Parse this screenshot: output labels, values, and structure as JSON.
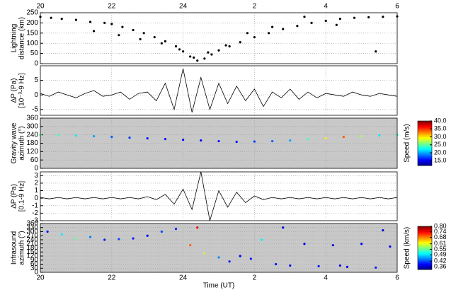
{
  "chart_data": [
    {
      "type": "scatter",
      "y_label": [
        "Lightning",
        "distance (km)"
      ],
      "color": "#000000",
      "xlim": [
        20,
        30
      ],
      "xticks": [
        20,
        22,
        24,
        {
          "value": 26,
          "label": "2"
        },
        {
          "value": 28,
          "label": "4"
        },
        {
          "value": 30,
          "label": "6"
        }
      ],
      "xaxis_labels": "top",
      "ylim": [
        0,
        250
      ],
      "yticks": [
        0,
        50,
        100,
        150,
        200,
        250
      ],
      "grid": true,
      "x": [
        20.0,
        20.3,
        20.6,
        21.0,
        21.4,
        21.8,
        22.0,
        22.3,
        22.6,
        22.9,
        23.2,
        23.5,
        23.8,
        24.0,
        24.2,
        24.4,
        24.6,
        24.8,
        25.0,
        25.3,
        25.6,
        26.0,
        26.4,
        26.8,
        27.2,
        27.6,
        28.0,
        28.4,
        28.8,
        29.2,
        29.6,
        30.0,
        21.5,
        22.2,
        22.8,
        23.4,
        23.9,
        24.3,
        24.7,
        25.2,
        25.8,
        26.5,
        27.4,
        28.3,
        29.4
      ],
      "values": [
        230,
        225,
        220,
        215,
        205,
        200,
        195,
        180,
        165,
        150,
        130,
        110,
        85,
        60,
        35,
        15,
        25,
        45,
        65,
        85,
        105,
        130,
        150,
        170,
        185,
        200,
        210,
        220,
        225,
        228,
        230,
        232,
        160,
        140,
        120,
        100,
        70,
        30,
        55,
        90,
        150,
        180,
        230,
        190,
        60
      ]
    },
    {
      "type": "line",
      "y_label": [
        "ΔP (Pa)",
        "[10⁻³-9 Hz]"
      ],
      "color": "#000000",
      "xlim": [
        20,
        30
      ],
      "xticks": [
        20,
        22,
        24,
        26,
        28,
        30
      ],
      "ylim": [
        -7,
        10
      ],
      "yticks": [
        -5,
        0,
        5
      ],
      "grid": true,
      "x": [
        20,
        20.25,
        20.5,
        20.75,
        21,
        21.25,
        21.5,
        21.75,
        22,
        22.25,
        22.5,
        22.75,
        23,
        23.25,
        23.5,
        23.75,
        24,
        24.25,
        24.5,
        24.75,
        25,
        25.25,
        25.5,
        25.75,
        26,
        26.25,
        26.5,
        26.75,
        27,
        27.25,
        27.5,
        27.75,
        28,
        28.25,
        28.5,
        28.75,
        29,
        29.25,
        29.5,
        29.75,
        30
      ],
      "values": [
        0.5,
        -0.5,
        1,
        0,
        -1,
        0.5,
        1.5,
        -0.5,
        0,
        1,
        -1.5,
        0.5,
        1,
        -2,
        4,
        -5,
        9,
        -6,
        6,
        -5,
        4,
        -3,
        3,
        -2,
        2,
        -4,
        1,
        -1,
        2,
        -1.5,
        1,
        -1,
        0.5,
        0,
        -0.5,
        1,
        0,
        -0.5,
        0.5,
        0,
        -0.5
      ]
    },
    {
      "type": "scatter",
      "y_label": [
        "Gravity wave",
        "azimuth (°)"
      ],
      "background": "#c8c8c8",
      "xlim": [
        20,
        30
      ],
      "xticks": [
        20,
        22,
        24,
        26,
        28,
        30
      ],
      "ylim": [
        0,
        360
      ],
      "yticks": [
        0,
        60,
        120,
        180,
        240,
        300,
        360
      ],
      "grid": true,
      "x": [
        20,
        20.5,
        21,
        21.5,
        22,
        22.5,
        23,
        23.5,
        24,
        24.5,
        25,
        25.5,
        26,
        26.5,
        27,
        27.5,
        28,
        28.5,
        29,
        29.5,
        30
      ],
      "values": [
        240,
        238,
        235,
        230,
        225,
        220,
        215,
        210,
        205,
        200,
        195,
        190,
        192,
        195,
        200,
        210,
        215,
        225,
        230,
        235,
        240
      ],
      "speed": [
        25,
        24,
        22,
        20,
        18,
        17,
        16,
        16,
        15,
        15,
        16,
        15,
        17,
        18,
        20,
        24,
        30,
        34,
        27,
        22,
        24
      ],
      "colorbar": {
        "label": "Speed (m/s)",
        "lim": [
          12,
          40
        ],
        "ticks": [
          {
            "value": 15,
            "label": "15.0"
          },
          {
            "value": 20,
            "label": "20.0"
          },
          {
            "value": 25,
            "label": "25.0"
          },
          {
            "value": 30,
            "label": "30.0"
          },
          {
            "value": 35,
            "label": "35.0"
          },
          {
            "value": 40,
            "label": "40.0"
          }
        ]
      }
    },
    {
      "type": "line",
      "y_label": [
        "ΔP (Pa)",
        "[0.1-9 Hz]"
      ],
      "color": "#000000",
      "xlim": [
        20,
        30
      ],
      "xticks": [
        20,
        22,
        24,
        26,
        28,
        30
      ],
      "ylim": [
        -3,
        3.5
      ],
      "yticks": [
        -3,
        -2,
        -1,
        0,
        1,
        2,
        3
      ],
      "grid": true,
      "x": [
        20,
        20.25,
        20.5,
        20.75,
        21,
        21.25,
        21.5,
        21.75,
        22,
        22.25,
        22.5,
        22.75,
        23,
        23.25,
        23.5,
        23.75,
        24,
        24.25,
        24.5,
        24.75,
        25,
        25.25,
        25.5,
        25.75,
        26,
        26.25,
        26.5,
        26.75,
        27,
        27.25,
        27.5,
        27.75,
        28,
        28.25,
        28.5,
        28.75,
        29,
        29.25,
        29.5,
        29.75,
        30
      ],
      "values": [
        0.1,
        -0.1,
        0.1,
        -0.1,
        0.1,
        -0.1,
        0.1,
        -0.1,
        0.1,
        -0.1,
        0.1,
        -0.1,
        0.2,
        -0.2,
        0.5,
        -0.8,
        1.2,
        -1.5,
        3.5,
        -3,
        1,
        -1.2,
        0.8,
        -0.6,
        0.3,
        -0.2,
        0.1,
        -0.1,
        0.1,
        -0.1,
        0.1,
        -0.1,
        0.1,
        -0.1,
        0.1,
        -0.1,
        0.1,
        -0.1,
        0.1,
        -0.1,
        0.1
      ]
    },
    {
      "type": "scatter",
      "y_label": [
        "Infrasound",
        "azimuth (°)"
      ],
      "background": "#c8c8c8",
      "x_label": "Time (UT)",
      "xlim": [
        20,
        30
      ],
      "xticks": [
        20,
        22,
        24,
        {
          "value": 26,
          "label": "2"
        },
        {
          "value": 28,
          "label": "4"
        },
        {
          "value": 30,
          "label": "6"
        }
      ],
      "xaxis_labels": "bottom",
      "ylim": [
        0,
        360
      ],
      "yticks": [
        0,
        30,
        60,
        90,
        120,
        150,
        180,
        210,
        240,
        270,
        300,
        330,
        360
      ],
      "grid": true,
      "x": [
        20.2,
        20.6,
        21.0,
        21.4,
        21.8,
        22.2,
        22.6,
        23.0,
        23.4,
        23.8,
        24.2,
        24.6,
        25.0,
        25.3,
        25.6,
        25.9,
        26.2,
        26.6,
        27.0,
        27.4,
        27.8,
        28.2,
        28.6,
        29.0,
        29.4,
        29.8,
        24.4,
        26.8,
        28.4,
        29.6
      ],
      "values": [
        300,
        280,
        250,
        260,
        240,
        245,
        250,
        270,
        300,
        320,
        200,
        140,
        110,
        80,
        120,
        100,
        240,
        60,
        50,
        210,
        45,
        200,
        40,
        210,
        35,
        190,
        330,
        330,
        50,
        310
      ],
      "speed": [
        0.4,
        0.5,
        0.55,
        0.45,
        0.4,
        0.42,
        0.4,
        0.38,
        0.42,
        0.4,
        0.7,
        0.6,
        0.45,
        0.4,
        0.38,
        0.4,
        0.5,
        0.4,
        0.38,
        0.38,
        0.4,
        0.37,
        0.38,
        0.38,
        0.4,
        0.38,
        0.75,
        0.38,
        0.38,
        0.37
      ],
      "colorbar": {
        "label": "Speed (km/s)",
        "lim": [
          0.33,
          0.8
        ],
        "ticks": [
          0.36,
          0.42,
          0.49,
          0.55,
          0.61,
          0.68,
          0.74,
          {
            "value": 0.8,
            "label": "0.80"
          }
        ]
      }
    }
  ]
}
